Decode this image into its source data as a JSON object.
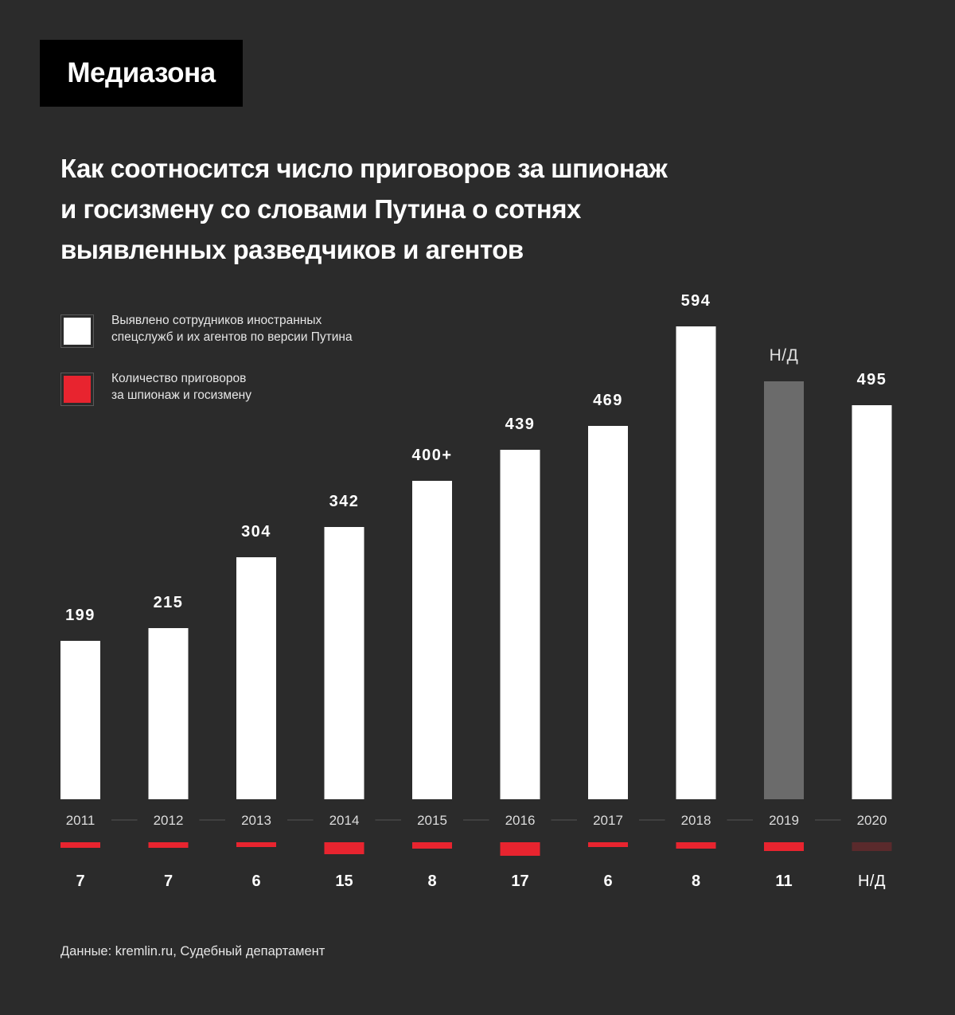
{
  "brand": {
    "logo_text": "Медиазона"
  },
  "title_lines": [
    "Как соотносится число приговоров за шпионаж",
    "и госизмену со словами Путина о сотнях",
    "выявленных разведчиков и агентов"
  ],
  "legend": [
    {
      "lines": [
        "Выявлено сотрудников иностранных",
        "спецслужб и их агентов по версии Путина"
      ],
      "color": "#ffffff"
    },
    {
      "lines": [
        "Количество приговоров",
        "за шпионаж и госизмену"
      ],
      "color": "#e8242f"
    }
  ],
  "source": "Данные: kremlin.ru, Судебный департамент",
  "colors": {
    "background": "#2b2b2b",
    "bar_agents": "#ffffff",
    "bar_agents_missing": "#6b6b6b",
    "bar_sentences": "#e8242f",
    "bar_sentences_missing": "#5a2a2c",
    "separator": "#555555"
  },
  "chart_data": {
    "type": "bar",
    "categories": [
      "2011",
      "2012",
      "2013",
      "2014",
      "2015",
      "2016",
      "2017",
      "2018",
      "2019",
      "2020"
    ],
    "series": [
      {
        "values": [
          199,
          215,
          304,
          342,
          400,
          439,
          469,
          594,
          null,
          495
        ],
        "labels": [
          "199",
          "215",
          "304",
          "342",
          "400+",
          "439",
          "469",
          "594",
          "Н/Д",
          "495"
        ],
        "placeholder_value_for_missing": 525
      },
      {
        "values": [
          7,
          7,
          6,
          15,
          8,
          17,
          6,
          8,
          11,
          null
        ],
        "labels": [
          "7",
          "7",
          "6",
          "15",
          "8",
          "17",
          "6",
          "8",
          "11",
          "Н/Д"
        ],
        "placeholder_value_for_missing": 11
      }
    ],
    "missing_label": "Н/Д"
  }
}
